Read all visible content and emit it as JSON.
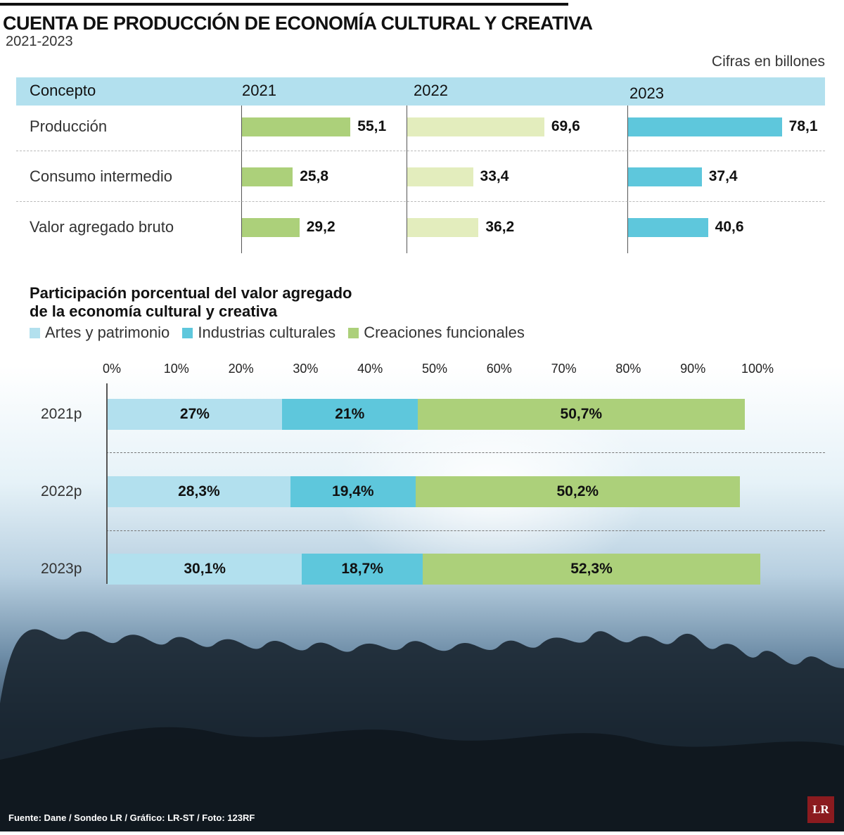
{
  "header": {
    "title": "CUENTA DE PRODUCCIÓN DE ECONOMÍA CULTURAL Y CREATIVA",
    "subtitle": "2021-2023",
    "units": "Cifras en billones"
  },
  "colors": {
    "green": "#acd07a",
    "light_green": "#e3edbd",
    "cyan": "#5ec7dc",
    "light_blue": "#b2e0ee",
    "header_bg": "#b2e0ee"
  },
  "chart_data": [
    {
      "type": "table",
      "title": "CUENTA DE PRODUCCIÓN DE ECONOMÍA CULTURAL Y CREATIVA",
      "header_label": "Concepto",
      "columns": [
        "2021",
        "2022",
        "2023"
      ],
      "rows": [
        {
          "label": "Producción",
          "values": [
            55.1,
            69.6,
            78.1
          ],
          "labels": [
            "55,1",
            "69,6",
            "78,1"
          ]
        },
        {
          "label": "Consumo intermedio",
          "values": [
            25.8,
            33.4,
            37.4
          ],
          "labels": [
            "25,8",
            "33,4",
            "37,4"
          ]
        },
        {
          "label": "Valor agregado bruto",
          "values": [
            29.2,
            36.2,
            40.6
          ],
          "labels": [
            "29,2",
            "36,2",
            "40,6"
          ]
        }
      ],
      "column_colors": [
        "#acd07a",
        "#e3edbd",
        "#5ec7dc"
      ],
      "max": 80
    },
    {
      "type": "bar",
      "stacked": true,
      "orientation": "horizontal",
      "title_line1": "Participación porcentual del valor agregado",
      "title_line2": "de la economía cultural y creativa",
      "categories": [
        "2021p",
        "2022p",
        "2023p"
      ],
      "series": [
        {
          "name": "Artes y patrimonio",
          "color": "#b2e0ee",
          "values": [
            27,
            28.3,
            30.1
          ],
          "labels": [
            "27%",
            "28,3%",
            "30,1%"
          ]
        },
        {
          "name": "Industrias culturales",
          "color": "#5ec7dc",
          "values": [
            21,
            19.4,
            18.7
          ],
          "labels": [
            "21%",
            "19,4%",
            "18,7%"
          ]
        },
        {
          "name": "Creaciones funcionales",
          "color": "#acd07a",
          "values": [
            50.7,
            50.2,
            52.3
          ],
          "labels": [
            "50,7%",
            "50,2%",
            "52,3%"
          ]
        }
      ],
      "xticks": [
        "0%",
        "10%",
        "20%",
        "30%",
        "40%",
        "50%",
        "60%",
        "70%",
        "80%",
        "90%",
        "100%"
      ],
      "xlim": [
        0,
        100
      ],
      "legend_position": "top-left"
    }
  ],
  "footer": {
    "source": "Fuente: Dane / Sondeo LR / Gráfico: LR-ST / Foto: 123RF",
    "logo": "LR"
  }
}
